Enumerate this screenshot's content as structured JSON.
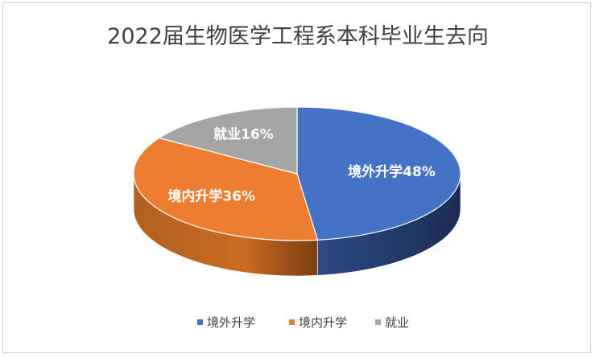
{
  "chart_data": {
    "type": "pie",
    "title": "2022届生物医学工程系本科毕业生去向",
    "categories": [
      "境外升学",
      "境内升学",
      "就业"
    ],
    "values": [
      48,
      36,
      16
    ],
    "unit": "%",
    "data_labels": [
      "境外升学48%",
      "境内升学36%",
      "就业16%"
    ],
    "colors": [
      "#4472C4",
      "#ED7D31",
      "#A5A5A5"
    ],
    "side_colors": [
      "#2F4C86",
      "#A9581F",
      "#777777"
    ],
    "legend_position": "bottom",
    "style": "3d"
  }
}
